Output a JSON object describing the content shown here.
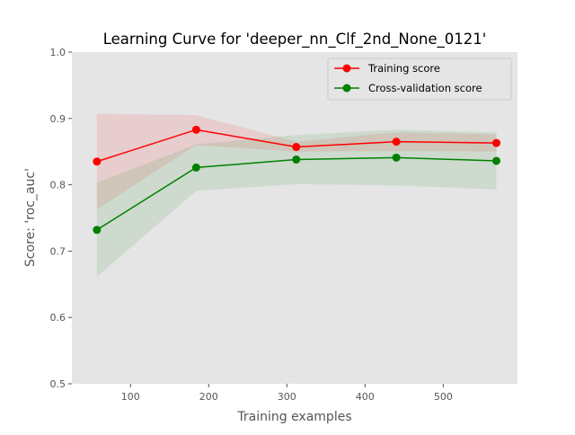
{
  "chart_data": {
    "type": "line",
    "title": "Learning Curve for 'deeper_nn_Clf_2nd_None_0121'",
    "xlabel": "Training examples",
    "ylabel": "Score: 'roc_auc'",
    "xlim": [
      25,
      595
    ],
    "ylim": [
      0.5,
      1.0
    ],
    "xticks": [
      100,
      200,
      300,
      400,
      500
    ],
    "yticks": [
      0.5,
      0.6,
      0.7,
      0.8,
      0.9,
      1.0
    ],
    "xtick_labels": [
      "100",
      "200",
      "300",
      "400",
      "500"
    ],
    "ytick_labels": [
      "0.5",
      "0.6",
      "0.7",
      "0.8",
      "0.9",
      "1.0"
    ],
    "grid": false,
    "legend_position": "top-right",
    "background": "#e5e5e5",
    "x": [
      57,
      184,
      312,
      440,
      568
    ],
    "series": [
      {
        "name": "Training score",
        "color": "#ff0000",
        "values": [
          0.835,
          0.883,
          0.857,
          0.865,
          0.863
        ],
        "lower": [
          0.763,
          0.86,
          0.85,
          0.851,
          0.85
        ],
        "upper": [
          0.907,
          0.905,
          0.865,
          0.879,
          0.876
        ]
      },
      {
        "name": "Cross-validation score",
        "color": "#008000",
        "values": [
          0.732,
          0.826,
          0.838,
          0.841,
          0.836
        ],
        "lower": [
          0.661,
          0.791,
          0.801,
          0.799,
          0.793
        ],
        "upper": [
          0.803,
          0.861,
          0.875,
          0.883,
          0.879
        ]
      }
    ]
  }
}
